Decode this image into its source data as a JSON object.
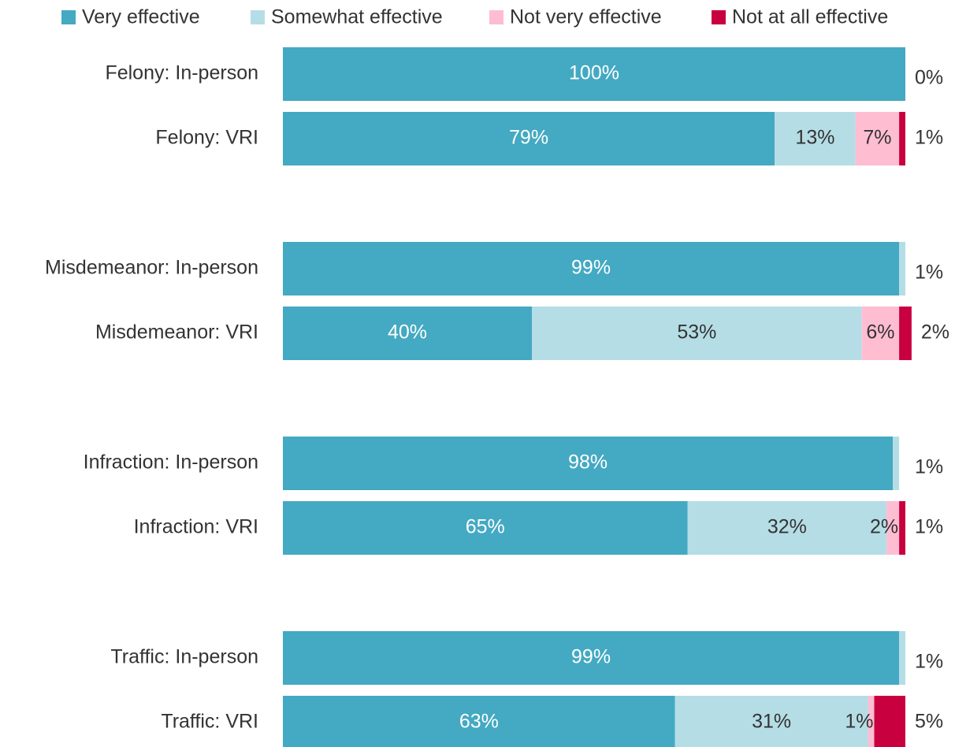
{
  "chart_data": {
    "type": "stacked-bar-horizontal",
    "categories": [
      "Felony: In-person",
      "Felony: VRI",
      "Misdemeanor: In-person",
      "Misdemeanor: VRI",
      "Infraction: In-person",
      "Infraction: VRI",
      "Traffic: In-person",
      "Traffic: VRI"
    ],
    "series": [
      {
        "name": "Very effective",
        "color": "#44a9c2",
        "values": [
          100,
          79,
          99,
          40,
          98,
          65,
          99,
          63
        ],
        "value_labels": [
          "100%",
          "79%",
          "99%",
          "40%",
          "98%",
          "65%",
          "99%",
          "63%"
        ]
      },
      {
        "name": "Somewhat effective",
        "color": "#b5dde6",
        "values": [
          0,
          13,
          1,
          53,
          1,
          32,
          1,
          31
        ],
        "value_labels": [
          "0%",
          "13%",
          "1%",
          "53%",
          "1%",
          "32%",
          "1%",
          "31%"
        ]
      },
      {
        "name": "Not very effective",
        "color": "#ffbdd2",
        "values": [
          0,
          7,
          0,
          6,
          0,
          2,
          0,
          1
        ],
        "value_labels": [
          null,
          "7%",
          null,
          "6%",
          null,
          "2%",
          null,
          "1%"
        ]
      },
      {
        "name": "Not at all effective",
        "color": "#c8003f",
        "values": [
          0,
          1,
          0,
          2,
          0,
          1,
          0,
          5
        ],
        "value_labels": [
          null,
          "1%",
          null,
          "2%",
          null,
          "1%",
          null,
          "5%"
        ]
      }
    ],
    "xlim": [
      0,
      100
    ],
    "legend": "top"
  }
}
